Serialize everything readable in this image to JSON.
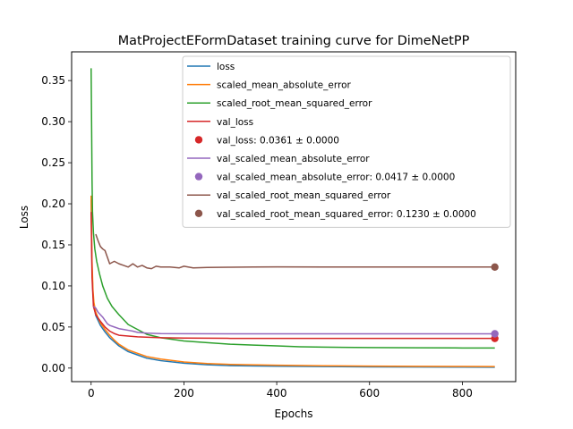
{
  "chart_data": {
    "type": "line",
    "title": "MatProjectEFormDataset training curve for DimeNetPP",
    "xlabel": "Epochs",
    "ylabel": "Loss",
    "xlim": [
      -42,
      915
    ],
    "ylim": [
      -0.0165,
      0.385
    ],
    "xticks": [
      0,
      200,
      400,
      600,
      800
    ],
    "yticks": [
      0.0,
      0.05,
      0.1,
      0.15,
      0.2,
      0.25,
      0.3,
      0.35
    ],
    "xtick_labels": [
      "0",
      "200",
      "400",
      "600",
      "800"
    ],
    "ytick_labels": [
      "0.00",
      "0.05",
      "0.10",
      "0.15",
      "0.20",
      "0.25",
      "0.30",
      "0.35"
    ],
    "grid": false,
    "legend_position": "top-right",
    "series": [
      {
        "name": "loss",
        "kind": "line",
        "color": "#1f77b4",
        "points": [
          [
            0,
            0.205
          ],
          [
            2,
            0.12
          ],
          [
            4,
            0.09
          ],
          [
            6,
            0.076
          ],
          [
            10,
            0.064
          ],
          [
            15,
            0.058
          ],
          [
            20,
            0.052
          ],
          [
            30,
            0.044
          ],
          [
            40,
            0.037
          ],
          [
            50,
            0.032
          ],
          [
            60,
            0.027
          ],
          [
            80,
            0.02
          ],
          [
            100,
            0.016
          ],
          [
            120,
            0.012
          ],
          [
            150,
            0.009
          ],
          [
            200,
            0.006
          ],
          [
            250,
            0.004
          ],
          [
            300,
            0.003
          ],
          [
            400,
            0.0022
          ],
          [
            500,
            0.0018
          ],
          [
            600,
            0.0015
          ],
          [
            700,
            0.0013
          ],
          [
            800,
            0.0012
          ],
          [
            870,
            0.0011
          ]
        ]
      },
      {
        "name": "scaled_mean_absolute_error",
        "kind": "line",
        "color": "#ff7f0e",
        "points": [
          [
            0,
            0.21
          ],
          [
            2,
            0.13
          ],
          [
            4,
            0.095
          ],
          [
            6,
            0.08
          ],
          [
            10,
            0.068
          ],
          [
            15,
            0.061
          ],
          [
            20,
            0.055
          ],
          [
            30,
            0.047
          ],
          [
            40,
            0.04
          ],
          [
            50,
            0.034
          ],
          [
            60,
            0.029
          ],
          [
            80,
            0.022
          ],
          [
            100,
            0.018
          ],
          [
            120,
            0.014
          ],
          [
            150,
            0.011
          ],
          [
            200,
            0.0075
          ],
          [
            250,
            0.0055
          ],
          [
            300,
            0.0045
          ],
          [
            400,
            0.0035
          ],
          [
            500,
            0.0028
          ],
          [
            600,
            0.0024
          ],
          [
            700,
            0.0021
          ],
          [
            800,
            0.002
          ],
          [
            870,
            0.0019
          ]
        ]
      },
      {
        "name": "scaled_root_mean_squared_error",
        "kind": "line",
        "color": "#2ca02c",
        "points": [
          [
            0,
            0.365
          ],
          [
            1,
            0.3
          ],
          [
            2,
            0.23
          ],
          [
            3,
            0.19
          ],
          [
            5,
            0.165
          ],
          [
            8,
            0.145
          ],
          [
            12,
            0.13
          ],
          [
            18,
            0.115
          ],
          [
            25,
            0.1
          ],
          [
            35,
            0.085
          ],
          [
            45,
            0.075
          ],
          [
            60,
            0.065
          ],
          [
            80,
            0.053
          ],
          [
            100,
            0.047
          ],
          [
            120,
            0.041
          ],
          [
            150,
            0.037
          ],
          [
            200,
            0.033
          ],
          [
            250,
            0.031
          ],
          [
            300,
            0.029
          ],
          [
            350,
            0.028
          ],
          [
            400,
            0.027
          ],
          [
            450,
            0.026
          ],
          [
            500,
            0.0255
          ],
          [
            600,
            0.025
          ],
          [
            700,
            0.0247
          ],
          [
            800,
            0.0245
          ],
          [
            870,
            0.0245
          ]
        ]
      },
      {
        "name": "val_loss",
        "kind": "line",
        "color": "#d62728",
        "points": [
          [
            0,
            0.19
          ],
          [
            2,
            0.11
          ],
          [
            5,
            0.075
          ],
          [
            10,
            0.065
          ],
          [
            20,
            0.057
          ],
          [
            30,
            0.05
          ],
          [
            40,
            0.045
          ],
          [
            50,
            0.042
          ],
          [
            60,
            0.04
          ],
          [
            80,
            0.039
          ],
          [
            100,
            0.038
          ],
          [
            150,
            0.037
          ],
          [
            200,
            0.0365
          ],
          [
            300,
            0.0362
          ],
          [
            400,
            0.0361
          ],
          [
            600,
            0.0361
          ],
          [
            870,
            0.0361
          ]
        ]
      },
      {
        "name": "val_loss: 0.0361 ± 0.0000",
        "kind": "marker",
        "color": "#d62728",
        "x": 870,
        "y": 0.0361
      },
      {
        "name": "val_scaled_mean_absolute_error",
        "kind": "line",
        "color": "#9467bd",
        "points": [
          [
            5,
            0.075
          ],
          [
            10,
            0.073
          ],
          [
            15,
            0.068
          ],
          [
            20,
            0.065
          ],
          [
            25,
            0.062
          ],
          [
            30,
            0.058
          ],
          [
            35,
            0.054
          ],
          [
            40,
            0.052
          ],
          [
            50,
            0.05
          ],
          [
            60,
            0.048
          ],
          [
            70,
            0.047
          ],
          [
            80,
            0.046
          ],
          [
            90,
            0.045
          ],
          [
            100,
            0.0435
          ],
          [
            120,
            0.0425
          ],
          [
            150,
            0.042
          ],
          [
            200,
            0.0418
          ],
          [
            300,
            0.0417
          ],
          [
            500,
            0.0417
          ],
          [
            870,
            0.0417
          ]
        ]
      },
      {
        "name": "val_scaled_mean_absolute_error: 0.0417 ± 0.0000",
        "kind": "marker",
        "color": "#9467bd",
        "x": 870,
        "y": 0.0417
      },
      {
        "name": "val_scaled_root_mean_squared_error",
        "kind": "line",
        "color": "#8c564b",
        "points": [
          [
            10,
            0.163
          ],
          [
            15,
            0.155
          ],
          [
            20,
            0.148
          ],
          [
            25,
            0.145
          ],
          [
            30,
            0.143
          ],
          [
            35,
            0.135
          ],
          [
            40,
            0.127
          ],
          [
            50,
            0.13
          ],
          [
            60,
            0.127
          ],
          [
            70,
            0.125
          ],
          [
            80,
            0.123
          ],
          [
            90,
            0.127
          ],
          [
            100,
            0.123
          ],
          [
            110,
            0.125
          ],
          [
            120,
            0.122
          ],
          [
            130,
            0.121
          ],
          [
            140,
            0.124
          ],
          [
            150,
            0.123
          ],
          [
            170,
            0.123
          ],
          [
            190,
            0.122
          ],
          [
            200,
            0.124
          ],
          [
            220,
            0.122
          ],
          [
            250,
            0.1225
          ],
          [
            300,
            0.1228
          ],
          [
            350,
            0.123
          ],
          [
            400,
            0.1232
          ],
          [
            500,
            0.123
          ],
          [
            600,
            0.123
          ],
          [
            870,
            0.123
          ]
        ]
      },
      {
        "name": "val_scaled_root_mean_squared_error: 0.1230 ± 0.0000",
        "kind": "marker",
        "color": "#8c564b",
        "x": 870,
        "y": 0.123
      }
    ]
  }
}
